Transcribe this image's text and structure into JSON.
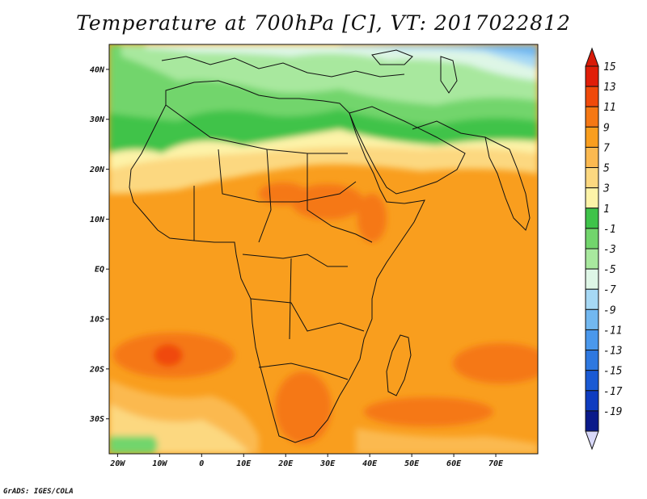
{
  "title": "Temperature at 700hPa [C], VT: 2017022812",
  "credit": "GrADS: IGES/COLA",
  "map": {
    "lon_range": [
      -22,
      80
    ],
    "lat_range": [
      -37,
      45
    ],
    "lat_ticks": [
      {
        "value": 40,
        "label": "40N"
      },
      {
        "value": 30,
        "label": "30N"
      },
      {
        "value": 20,
        "label": "20N"
      },
      {
        "value": 10,
        "label": "10N"
      },
      {
        "value": 0,
        "label": "EQ"
      },
      {
        "value": -10,
        "label": "10S"
      },
      {
        "value": -20,
        "label": "20S"
      },
      {
        "value": -30,
        "label": "30S"
      }
    ],
    "lon_ticks": [
      {
        "value": -20,
        "label": "20W"
      },
      {
        "value": -10,
        "label": "10W"
      },
      {
        "value": 0,
        "label": "0"
      },
      {
        "value": 10,
        "label": "10E"
      },
      {
        "value": 20,
        "label": "20E"
      },
      {
        "value": 30,
        "label": "30E"
      },
      {
        "value": 40,
        "label": "40E"
      },
      {
        "value": 50,
        "label": "50E"
      },
      {
        "value": 60,
        "label": "60E"
      },
      {
        "value": 70,
        "label": "70E"
      }
    ]
  },
  "colorbar": {
    "levels": [
      {
        "label": "15",
        "color": "#e01e08"
      },
      {
        "label": "13",
        "color": "#f04a0a"
      },
      {
        "label": "11",
        "color": "#f57814"
      },
      {
        "label": "9",
        "color": "#f99e1e"
      },
      {
        "label": "7",
        "color": "#fbb950"
      },
      {
        "label": "5",
        "color": "#fcd880"
      },
      {
        "label": "3",
        "color": "#fdf3a8"
      },
      {
        "label": "1",
        "color": "#3fc34a"
      },
      {
        "label": "-1",
        "color": "#72d56c"
      },
      {
        "label": "-3",
        "color": "#a8e89e"
      },
      {
        "label": "-5",
        "color": "#def6e6"
      },
      {
        "label": "-7",
        "color": "#a6d8f4"
      },
      {
        "label": "-9",
        "color": "#72b8f0"
      },
      {
        "label": "-11",
        "color": "#4a98ec"
      },
      {
        "label": "-13",
        "color": "#2e78e0"
      },
      {
        "label": "-15",
        "color": "#1a5ad4"
      },
      {
        "label": "-17",
        "color": "#0e3cc0"
      },
      {
        "label": "-19",
        "color": "#0a1a8a"
      }
    ],
    "top_arrow_color": "#d81a08",
    "bottom_arrow_color": "#d8d8f8"
  }
}
